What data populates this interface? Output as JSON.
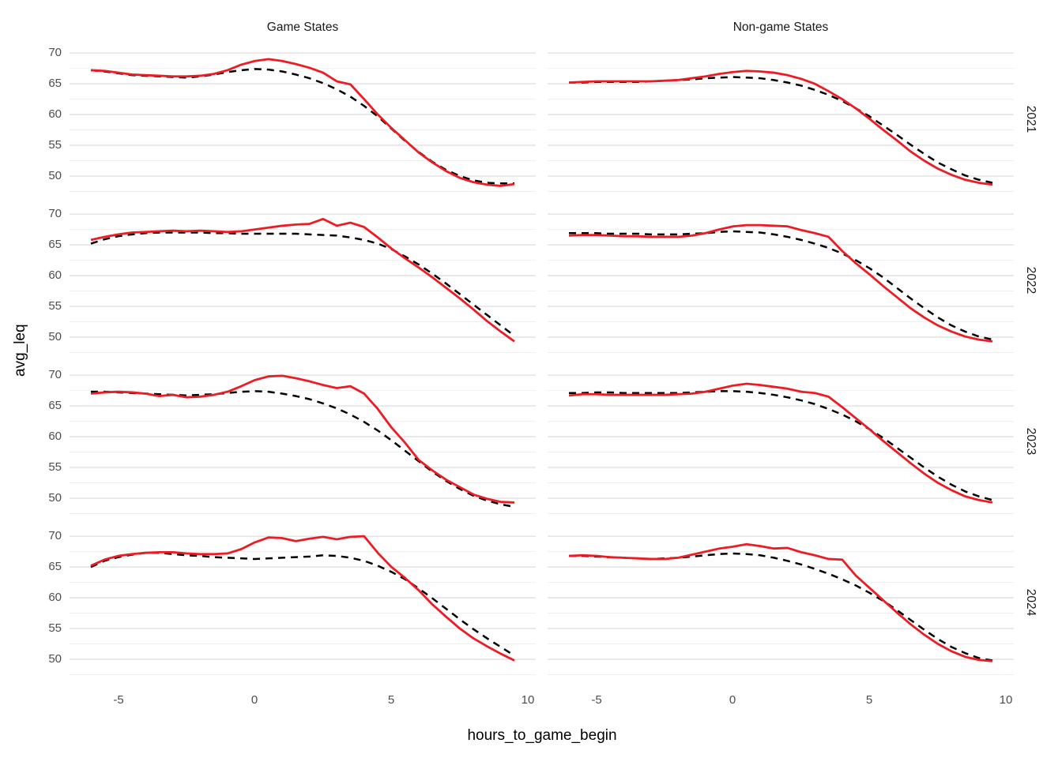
{
  "figure": {
    "y_axis_title": "avg_leq",
    "x_axis_title": "hours_to_game_begin",
    "col_titles": [
      "Game States",
      "Non-game States"
    ],
    "row_labels": [
      "2021",
      "2022",
      "2023",
      "2024"
    ],
    "colors": {
      "line_red": "#ED1C24",
      "line_black": "#000000",
      "grid_major": "#dedede",
      "grid_minor": "#efefef",
      "axis_text": "#4d4d4d",
      "title_text": "#1a1a1a",
      "background": "#ffffff"
    }
  },
  "chart_data": {
    "type": "line",
    "title": "",
    "xlabel": "hours_to_game_begin",
    "ylabel": "avg_leq",
    "facet_cols": [
      "Game States",
      "Non-game States"
    ],
    "facet_rows": [
      "2021",
      "2022",
      "2023",
      "2024"
    ],
    "legend": "none",
    "grid": "horizontal-major-and-minor-only",
    "x_ticks": [
      -5,
      0,
      5,
      10
    ],
    "y_ticks": [
      70,
      65,
      60,
      55,
      50
    ],
    "y_minor_ticks": [
      67.5,
      62.5,
      57.5,
      52.5,
      47.5
    ],
    "x_range": [
      -6.78,
      10.28
    ],
    "y_range": [
      47.3,
      71.3
    ],
    "x": [
      -6,
      -5.5,
      -5,
      -4.5,
      -4,
      -3.5,
      -3,
      -2.5,
      -2,
      -1.5,
      -1,
      -0.5,
      0,
      0.5,
      1,
      1.5,
      2,
      2.5,
      3,
      3.5,
      4,
      4.5,
      5,
      5.5,
      6,
      6.5,
      7,
      7.5,
      8,
      8.5,
      9,
      9.5
    ],
    "panels": [
      {
        "row": "2021",
        "col": "Game States",
        "series": [
          {
            "name": "red_solid",
            "style": "solid",
            "color_key": "line_red",
            "values": [
              67.2,
              67.1,
              66.8,
              66.5,
              66.4,
              66.3,
              66.2,
              66.2,
              66.3,
              66.6,
              67.2,
              68.1,
              68.7,
              69.0,
              68.7,
              68.2,
              67.6,
              66.8,
              65.4,
              64.9,
              62.5,
              60.0,
              57.8,
              55.8,
              53.8,
              52.2,
              50.8,
              49.7,
              49.0,
              48.6,
              48.4,
              48.7
            ]
          },
          {
            "name": "black_dashed",
            "style": "dashed",
            "color_key": "line_black",
            "values": [
              67.2,
              67.0,
              66.7,
              66.4,
              66.3,
              66.2,
              66.1,
              66.0,
              66.2,
              66.5,
              66.9,
              67.2,
              67.4,
              67.3,
              67.0,
              66.5,
              65.9,
              65.1,
              64.1,
              62.9,
              61.4,
              59.7,
              57.7,
              55.7,
              53.9,
              52.3,
              51.0,
              50.0,
              49.3,
              48.9,
              48.8,
              48.8
            ]
          }
        ]
      },
      {
        "row": "2021",
        "col": "Non-game States",
        "series": [
          {
            "name": "red_solid",
            "style": "solid",
            "color_key": "line_red",
            "values": [
              65.2,
              65.3,
              65.4,
              65.4,
              65.4,
              65.4,
              65.4,
              65.5,
              65.6,
              65.9,
              66.2,
              66.6,
              66.9,
              67.1,
              67.0,
              66.8,
              66.4,
              65.8,
              65.0,
              63.8,
              62.5,
              61.0,
              59.3,
              57.5,
              55.8,
              54.0,
              52.5,
              51.2,
              50.2,
              49.4,
              48.9,
              48.6
            ]
          },
          {
            "name": "black_dashed",
            "style": "dashed",
            "color_key": "line_black",
            "values": [
              65.2,
              65.2,
              65.3,
              65.3,
              65.3,
              65.3,
              65.4,
              65.5,
              65.6,
              65.7,
              65.9,
              66.0,
              66.1,
              66.0,
              65.9,
              65.6,
              65.2,
              64.7,
              64.0,
              63.2,
              62.2,
              61.0,
              59.7,
              58.2,
              56.7,
              55.1,
              53.6,
              52.2,
              51.1,
              50.1,
              49.4,
              48.9
            ]
          }
        ]
      },
      {
        "row": "2022",
        "col": "Game States",
        "series": [
          {
            "name": "red_solid",
            "style": "solid",
            "color_key": "line_red",
            "values": [
              65.8,
              66.3,
              66.7,
              67.0,
              67.1,
              67.2,
              67.3,
              67.2,
              67.3,
              67.2,
              67.1,
              67.2,
              67.5,
              67.8,
              68.1,
              68.3,
              68.4,
              69.2,
              68.1,
              68.6,
              67.9,
              66.2,
              64.4,
              62.8,
              61.3,
              59.7,
              58.0,
              56.3,
              54.5,
              52.6,
              50.9,
              49.3
            ]
          },
          {
            "name": "black_dashed",
            "style": "dashed",
            "color_key": "line_black",
            "values": [
              65.2,
              65.9,
              66.4,
              66.7,
              66.9,
              67.0,
              67.0,
              67.0,
              67.0,
              66.9,
              66.9,
              66.8,
              66.8,
              66.8,
              66.8,
              66.8,
              66.7,
              66.6,
              66.5,
              66.2,
              65.8,
              65.2,
              64.3,
              63.1,
              61.8,
              60.3,
              58.7,
              57.0,
              55.3,
              53.6,
              51.9,
              50.2
            ]
          }
        ]
      },
      {
        "row": "2022",
        "col": "Non-game States",
        "series": [
          {
            "name": "red_solid",
            "style": "solid",
            "color_key": "line_red",
            "values": [
              66.5,
              66.6,
              66.6,
              66.5,
              66.4,
              66.4,
              66.3,
              66.3,
              66.3,
              66.5,
              66.9,
              67.5,
              68.0,
              68.2,
              68.2,
              68.1,
              68.0,
              67.4,
              66.9,
              66.3,
              64.0,
              62.0,
              60.2,
              58.3,
              56.5,
              54.7,
              53.2,
              51.9,
              50.9,
              50.1,
              49.6,
              49.3
            ]
          },
          {
            "name": "black_dashed",
            "style": "dashed",
            "color_key": "line_black",
            "values": [
              66.9,
              66.9,
              66.9,
              66.8,
              66.8,
              66.8,
              66.7,
              66.7,
              66.7,
              66.8,
              66.9,
              67.1,
              67.2,
              67.1,
              67.0,
              66.7,
              66.3,
              65.8,
              65.2,
              64.5,
              63.6,
              62.5,
              61.2,
              59.7,
              58.0,
              56.3,
              54.7,
              53.2,
              51.9,
              50.9,
              50.1,
              49.6
            ]
          }
        ]
      },
      {
        "row": "2023",
        "col": "Game States",
        "series": [
          {
            "name": "red_solid",
            "style": "solid",
            "color_key": "line_red",
            "values": [
              67.0,
              67.2,
              67.3,
              67.2,
              67.0,
              66.6,
              66.8,
              66.4,
              66.5,
              66.8,
              67.3,
              68.2,
              69.2,
              69.8,
              69.9,
              69.5,
              69.0,
              68.4,
              67.9,
              68.2,
              67.0,
              64.5,
              61.5,
              59.0,
              56.2,
              54.5,
              53.0,
              51.8,
              50.6,
              49.9,
              49.4,
              49.3
            ]
          },
          {
            "name": "black_dashed",
            "style": "dashed",
            "color_key": "line_black",
            "values": [
              67.3,
              67.3,
              67.2,
              67.1,
              67.0,
              66.9,
              66.8,
              66.7,
              66.8,
              66.9,
              67.1,
              67.3,
              67.4,
              67.3,
              67.0,
              66.6,
              66.1,
              65.4,
              64.6,
              63.6,
              62.4,
              61.0,
              59.4,
              57.7,
              56.0,
              54.3,
              52.8,
              51.5,
              50.4,
              49.6,
              49.0,
              48.6
            ]
          }
        ]
      },
      {
        "row": "2023",
        "col": "Non-game States",
        "series": [
          {
            "name": "red_solid",
            "style": "solid",
            "color_key": "line_red",
            "values": [
              66.7,
              66.9,
              66.9,
              66.8,
              66.8,
              66.8,
              66.8,
              66.8,
              66.9,
              67.0,
              67.3,
              67.8,
              68.3,
              68.6,
              68.4,
              68.1,
              67.8,
              67.3,
              67.1,
              66.5,
              64.8,
              63.0,
              61.2,
              59.3,
              57.5,
              55.7,
              54.0,
              52.5,
              51.3,
              50.3,
              49.7,
              49.3
            ]
          },
          {
            "name": "black_dashed",
            "style": "dashed",
            "color_key": "line_black",
            "values": [
              67.1,
              67.1,
              67.2,
              67.2,
              67.1,
              67.1,
              67.1,
              67.1,
              67.1,
              67.2,
              67.3,
              67.4,
              67.4,
              67.3,
              67.1,
              66.8,
              66.4,
              65.9,
              65.3,
              64.5,
              63.6,
              62.5,
              61.2,
              59.8,
              58.2,
              56.6,
              55.0,
              53.5,
              52.2,
              51.1,
              50.3,
              49.7
            ]
          }
        ]
      },
      {
        "row": "2024",
        "col": "Game States",
        "series": [
          {
            "name": "red_solid",
            "style": "solid",
            "color_key": "line_red",
            "values": [
              65.2,
              66.2,
              66.8,
              67.1,
              67.3,
              67.4,
              67.4,
              67.2,
              67.1,
              67.1,
              67.2,
              67.9,
              69.0,
              69.8,
              69.7,
              69.2,
              69.6,
              69.9,
              69.5,
              69.9,
              70.0,
              67.3,
              65.0,
              63.2,
              61.2,
              58.9,
              56.9,
              55.0,
              53.4,
              52.1,
              50.9,
              49.8
            ]
          },
          {
            "name": "black_dashed",
            "style": "dashed",
            "color_key": "line_black",
            "values": [
              65.0,
              66.0,
              66.6,
              67.0,
              67.3,
              67.3,
              67.1,
              66.9,
              66.8,
              66.6,
              66.5,
              66.4,
              66.3,
              66.4,
              66.5,
              66.6,
              66.7,
              66.9,
              66.8,
              66.5,
              66.0,
              65.2,
              64.2,
              63.0,
              61.5,
              59.9,
              58.2,
              56.5,
              54.9,
              53.4,
              52.0,
              50.6
            ]
          }
        ]
      },
      {
        "row": "2024",
        "col": "Non-game States",
        "series": [
          {
            "name": "red_solid",
            "style": "solid",
            "color_key": "line_red",
            "values": [
              66.8,
              66.9,
              66.8,
              66.6,
              66.5,
              66.4,
              66.3,
              66.3,
              66.5,
              67.0,
              67.5,
              68.0,
              68.3,
              68.7,
              68.4,
              68.0,
              68.1,
              67.4,
              66.9,
              66.3,
              66.2,
              63.6,
              61.6,
              59.6,
              57.6,
              55.7,
              54.0,
              52.5,
              51.3,
              50.4,
              49.9,
              49.7
            ]
          },
          {
            "name": "black_dashed",
            "style": "dashed",
            "color_key": "line_black",
            "values": [
              66.8,
              66.8,
              66.7,
              66.6,
              66.5,
              66.4,
              66.3,
              66.4,
              66.5,
              66.7,
              66.9,
              67.1,
              67.2,
              67.1,
              66.9,
              66.5,
              66.0,
              65.4,
              64.7,
              63.9,
              63.0,
              62.0,
              60.8,
              59.5,
              58.0,
              56.4,
              54.8,
              53.3,
              52.0,
              51.0,
              50.2,
              49.8
            ]
          }
        ]
      }
    ]
  }
}
